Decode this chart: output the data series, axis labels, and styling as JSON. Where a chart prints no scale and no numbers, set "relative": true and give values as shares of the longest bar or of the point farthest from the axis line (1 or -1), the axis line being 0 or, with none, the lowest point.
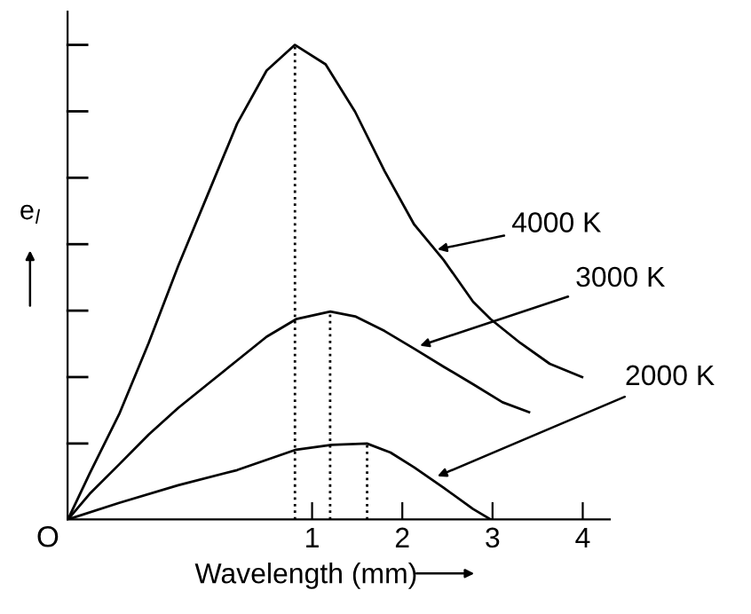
{
  "chart_data": {
    "type": "line",
    "relative": true,
    "xlabel": "Wavelength (mm)",
    "ylabel": "e$_{l}$",
    "xlim": [
      -1.71,
      4.3
    ],
    "xticks": [
      1,
      2,
      3,
      4
    ],
    "grid": false,
    "legend": false,
    "marker": "none",
    "line_style": "solid",
    "series": [
      {
        "color": "#000000",
        "x": [
          -1.706,
          -1.465,
          -1.138,
          -0.811,
          -0.484,
          -0.158,
          0.169,
          0.496,
          0.81,
          1.15,
          1.477,
          1.804,
          2.13,
          2.457,
          2.784,
          2.98,
          3.307,
          3.634,
          3.993
        ],
        "values": [
          0,
          0.097,
          0.222,
          0.372,
          0.534,
          0.684,
          0.834,
          0.946,
          1.0,
          0.959,
          0.859,
          0.734,
          0.622,
          0.547,
          0.459,
          0.422,
          0.372,
          0.328,
          0.3
        ]
      },
      {
        "color": "#000000",
        "x": [
          -1.706,
          -1.465,
          -1.138,
          -0.811,
          -0.484,
          -0.158,
          0.169,
          0.496,
          0.823,
          1.202,
          1.477,
          1.804,
          2.13,
          2.457,
          2.784,
          3.111,
          3.405
        ],
        "values": [
          0,
          0.054,
          0.116,
          0.179,
          0.235,
          0.285,
          0.335,
          0.385,
          0.422,
          0.438,
          0.428,
          0.397,
          0.36,
          0.322,
          0.285,
          0.247,
          0.226
        ]
      },
      {
        "color": "#000000",
        "x": [
          -1.706,
          -1.138,
          -0.484,
          0.169,
          0.823,
          1.215,
          1.608,
          1.869,
          2.13,
          2.457,
          2.784,
          2.98
        ],
        "values": [
          0,
          0.035,
          0.072,
          0.104,
          0.147,
          0.157,
          0.16,
          0.141,
          0.11,
          0.067,
          0.022,
          0
        ]
      },
      {
        "color": "#000000",
        "line_style": "dotted",
        "x": [
          0.81,
          0.81
        ],
        "values": [
          0,
          1.0
        ]
      },
      {
        "color": "#000000",
        "line_style": "dotted",
        "x": [
          1.2,
          1.2
        ],
        "values": [
          0,
          0.438
        ]
      },
      {
        "color": "#000000",
        "line_style": "dotted",
        "x": [
          1.61,
          1.61
        ],
        "values": [
          0,
          0.16
        ]
      }
    ],
    "annotations": [
      {
        "text": "4000 K",
        "x": 2.39,
        "y": 0.569
      },
      {
        "text": "3000 K",
        "x": 2.196,
        "y": 0.366
      },
      {
        "text": "2000 K",
        "x": 2.39,
        "y": 0.091
      },
      {
        "text": "O",
        "x": -1.71,
        "y": 0
      }
    ]
  }
}
